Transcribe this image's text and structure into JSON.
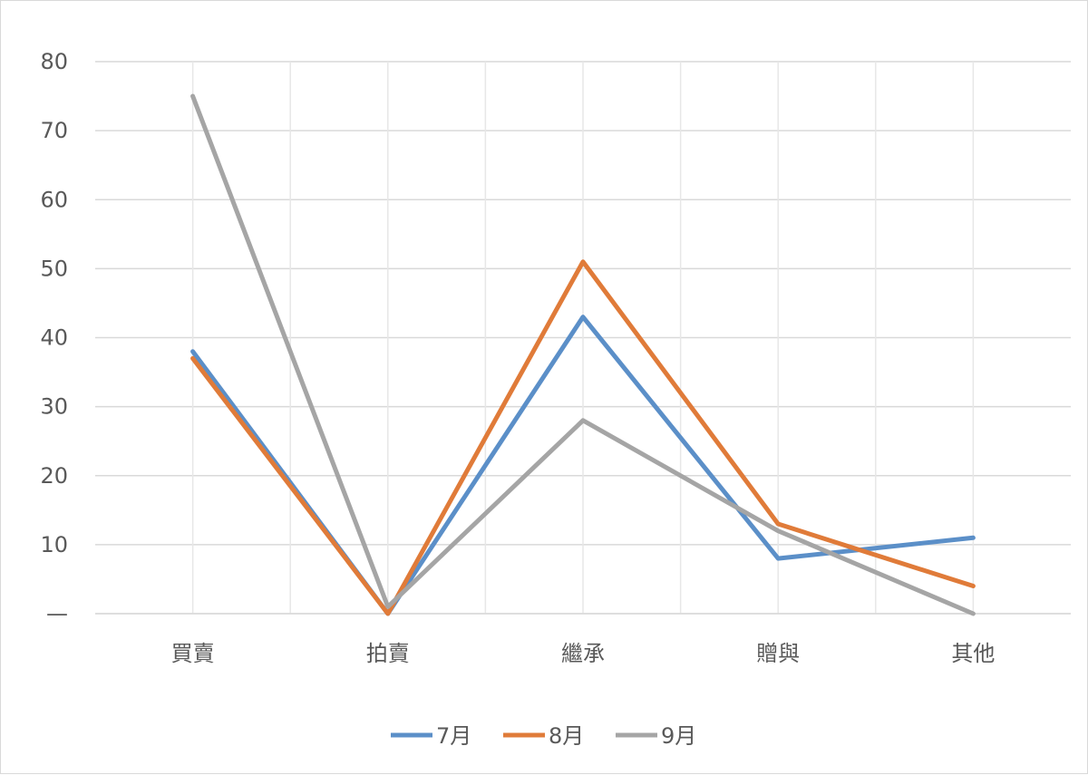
{
  "chart_data": {
    "type": "line",
    "categories": [
      "買賣",
      "拍賣",
      "繼承",
      "贈與",
      "其他"
    ],
    "y_ticks": [
      "—",
      "10",
      "20",
      "30",
      "40",
      "50",
      "60",
      "70",
      "80"
    ],
    "ylim": [
      0,
      80
    ],
    "grid": true,
    "legend_position": "bottom",
    "series": [
      {
        "name": "7月",
        "color": "#5b8fc8",
        "values": [
          38,
          0,
          43,
          8,
          11
        ]
      },
      {
        "name": "8月",
        "color": "#e07b39",
        "values": [
          37,
          0,
          51,
          13,
          4
        ]
      },
      {
        "name": "9月",
        "color": "#a5a5a5",
        "values": [
          75,
          1,
          28,
          12,
          0
        ]
      }
    ]
  }
}
